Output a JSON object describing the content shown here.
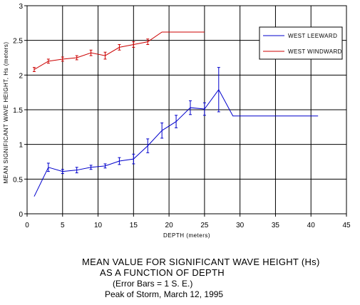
{
  "chart_data": {
    "type": "line",
    "title_lines": [
      "MEAN VALUE FOR SIGNIFICANT WAVE HEIGHT (Hs)",
      "AS A FUNCTION OF DEPTH",
      "(Error Bars = 1 S. E.)",
      "Peak of Storm, March 12, 1995"
    ],
    "xlabel": "DEPTH (meters)",
    "ylabel": "MEAN SIGNIFICANT WAVE HEIGHT, Hs (meters)",
    "xlim": [
      0,
      45
    ],
    "ylim": [
      0,
      3
    ],
    "x_ticks": [
      "0",
      "5",
      "10",
      "15",
      "20",
      "25",
      "30",
      "35",
      "40",
      "45"
    ],
    "y_ticks": [
      "0",
      "0.5",
      "1",
      "1.5",
      "2",
      "2.5",
      "3"
    ],
    "grid": true,
    "legend_position": "top-right",
    "series": [
      {
        "name": "WEST LEEWARD",
        "color": "#0000cc",
        "x": [
          1,
          3,
          5,
          7,
          9,
          11,
          13,
          15,
          17,
          19,
          21,
          23,
          25,
          27,
          29,
          41
        ],
        "y": [
          0.25,
          0.67,
          0.61,
          0.63,
          0.67,
          0.69,
          0.76,
          0.79,
          0.98,
          1.2,
          1.33,
          1.53,
          1.51,
          1.79,
          1.41,
          1.41
        ],
        "err": [
          null,
          0.06,
          0.03,
          0.04,
          0.03,
          0.03,
          0.05,
          0.07,
          0.1,
          0.11,
          0.09,
          0.1,
          0.09,
          0.32,
          null,
          null
        ]
      },
      {
        "name": "WEST WINDWARD",
        "color": "#cc0000",
        "x": [
          1,
          3,
          5,
          7,
          9,
          11,
          13,
          15,
          17,
          19,
          25
        ],
        "y": [
          2.08,
          2.2,
          2.23,
          2.25,
          2.32,
          2.28,
          2.4,
          2.44,
          2.48,
          2.62,
          2.62
        ],
        "err": [
          0.03,
          0.03,
          0.03,
          0.03,
          0.04,
          0.05,
          0.04,
          0.04,
          0.04,
          null,
          null
        ]
      }
    ]
  }
}
